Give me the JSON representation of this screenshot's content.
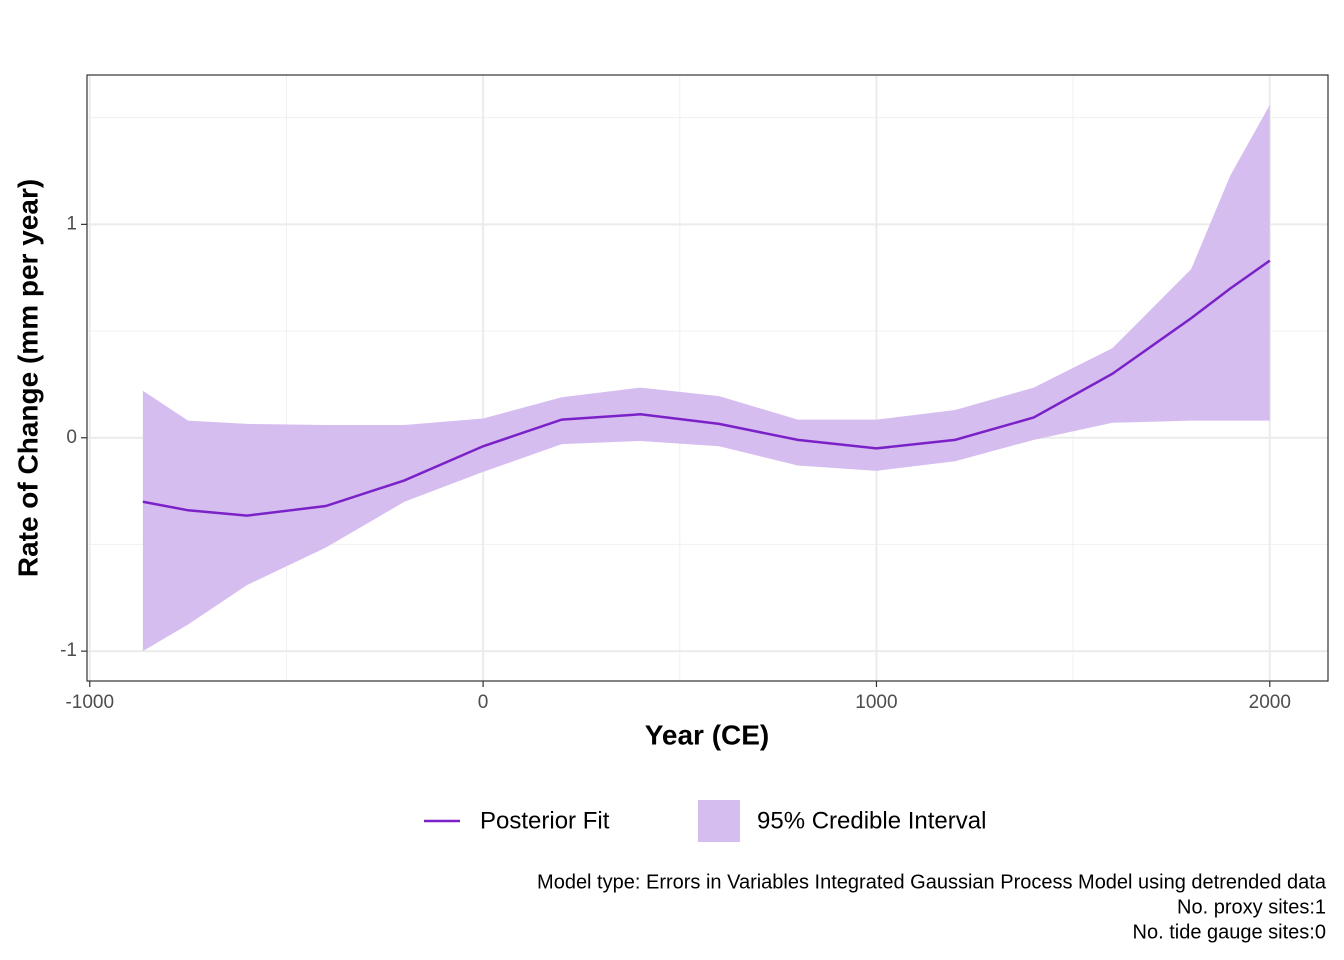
{
  "chart_data": {
    "type": "line-band",
    "x_label": "Year (CE)",
    "y_label": "Rate of Change (mm per year)",
    "x": [
      -865,
      -750,
      -600,
      -400,
      -200,
      0,
      200,
      400,
      600,
      800,
      1000,
      1200,
      1400,
      1600,
      1800,
      1900,
      2000
    ],
    "series": [
      {
        "name": "Posterior Fit",
        "kind": "line",
        "color": "#7a22c8",
        "values": [
          -0.3,
          -0.34,
          -0.365,
          -0.32,
          -0.2,
          -0.04,
          0.085,
          0.11,
          0.065,
          -0.01,
          -0.05,
          -0.01,
          0.095,
          0.3,
          0.56,
          0.7,
          0.83
        ]
      },
      {
        "name": "95% Credible Interval",
        "kind": "band",
        "color": "#d6bdf0",
        "upper": [
          0.22,
          0.08,
          0.065,
          0.06,
          0.06,
          0.09,
          0.19,
          0.235,
          0.195,
          0.085,
          0.085,
          0.13,
          0.235,
          0.42,
          0.79,
          1.23,
          1.56
        ],
        "lower": [
          -1.0,
          -0.875,
          -0.69,
          -0.515,
          -0.3,
          -0.16,
          -0.03,
          -0.015,
          -0.04,
          -0.13,
          -0.155,
          -0.11,
          -0.01,
          0.07,
          0.08,
          0.08,
          0.08
        ]
      }
    ],
    "xlim": [
      -1007,
      2148
    ],
    "ylim": [
      -1.14,
      1.7
    ],
    "xticks": [
      -1000,
      0,
      1000,
      2000
    ],
    "yticks": [
      -1,
      0,
      1
    ],
    "xminor": [
      -500,
      500,
      1500
    ],
    "yminor": [
      -0.5,
      0.5,
      1.5
    ],
    "grid": true,
    "legend": "bottom",
    "caption": [
      "Model type: Errors in Variables Integrated Gaussian Process Model using detrended data",
      "No. proxy sites:1",
      "No. tide gauge sites:0"
    ]
  }
}
